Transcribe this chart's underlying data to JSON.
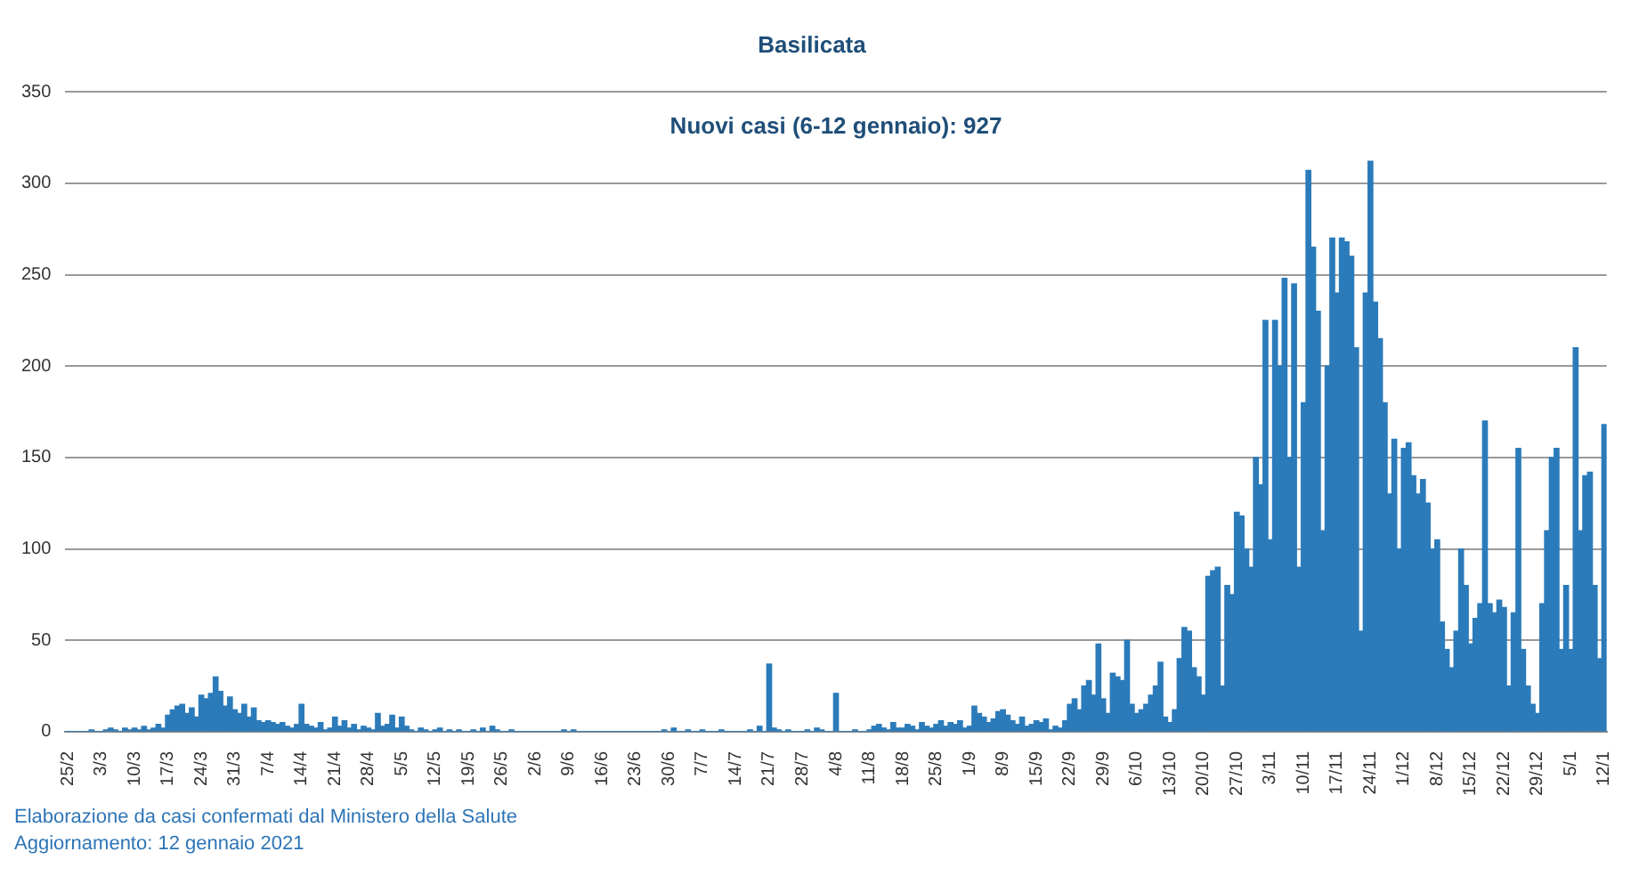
{
  "chart_data": {
    "type": "bar",
    "title": "Basilicata",
    "annotations": [
      "Nuovi casi (6-12 gennaio): 927",
      "Elaborazione da casi confermati dal Ministero della Salute",
      "Aggiornamento: 12 gennaio 2021"
    ],
    "categories": [
      "25/2",
      null,
      null,
      null,
      null,
      null,
      null,
      "3/3",
      null,
      null,
      null,
      null,
      null,
      null,
      "10/3",
      null,
      null,
      null,
      null,
      null,
      null,
      "17/3",
      null,
      null,
      null,
      null,
      null,
      null,
      "24/3",
      null,
      null,
      null,
      null,
      null,
      null,
      "31/3",
      null,
      null,
      null,
      null,
      null,
      null,
      "7/4",
      null,
      null,
      null,
      null,
      null,
      null,
      "14/4",
      null,
      null,
      null,
      null,
      null,
      null,
      "21/4",
      null,
      null,
      null,
      null,
      null,
      null,
      "28/4",
      null,
      null,
      null,
      null,
      null,
      null,
      "5/5",
      null,
      null,
      null,
      null,
      null,
      null,
      "12/5",
      null,
      null,
      null,
      null,
      null,
      null,
      "19/5",
      null,
      null,
      null,
      null,
      null,
      null,
      "26/5",
      null,
      null,
      null,
      null,
      null,
      null,
      "2/6",
      null,
      null,
      null,
      null,
      null,
      null,
      "9/6",
      null,
      null,
      null,
      null,
      null,
      null,
      "16/6",
      null,
      null,
      null,
      null,
      null,
      null,
      "23/6",
      null,
      null,
      null,
      null,
      null,
      null,
      "30/6",
      null,
      null,
      null,
      null,
      null,
      null,
      "7/7",
      null,
      null,
      null,
      null,
      null,
      null,
      "14/7",
      null,
      null,
      null,
      null,
      null,
      null,
      "21/7",
      null,
      null,
      null,
      null,
      null,
      null,
      "28/7",
      null,
      null,
      null,
      null,
      null,
      null,
      "4/8",
      null,
      null,
      null,
      null,
      null,
      null,
      "11/8",
      null,
      null,
      null,
      null,
      null,
      null,
      "18/8",
      null,
      null,
      null,
      null,
      null,
      null,
      "25/8",
      null,
      null,
      null,
      null,
      null,
      null,
      "1/9",
      null,
      null,
      null,
      null,
      null,
      null,
      "8/9",
      null,
      null,
      null,
      null,
      null,
      null,
      "15/9",
      null,
      null,
      null,
      null,
      null,
      null,
      "22/9",
      null,
      null,
      null,
      null,
      null,
      null,
      "29/9",
      null,
      null,
      null,
      null,
      null,
      null,
      "6/10",
      null,
      null,
      null,
      null,
      null,
      null,
      "13/10",
      null,
      null,
      null,
      null,
      null,
      null,
      "20/10",
      null,
      null,
      null,
      null,
      null,
      null,
      "27/10",
      null,
      null,
      null,
      null,
      null,
      null,
      "3/11",
      null,
      null,
      null,
      null,
      null,
      null,
      "10/11",
      null,
      null,
      null,
      null,
      null,
      null,
      "17/11",
      null,
      null,
      null,
      null,
      null,
      null,
      "24/11",
      null,
      null,
      null,
      null,
      null,
      null,
      "1/12",
      null,
      null,
      null,
      null,
      null,
      null,
      "8/12",
      null,
      null,
      null,
      null,
      null,
      null,
      "15/12",
      null,
      null,
      null,
      null,
      null,
      null,
      "22/12",
      null,
      null,
      null,
      null,
      null,
      null,
      "29/12",
      null,
      null,
      null,
      null,
      null,
      null,
      "5/1",
      null,
      null,
      null,
      null,
      null,
      null,
      "12/1"
    ],
    "values": [
      0,
      0,
      0,
      0,
      0,
      1,
      0,
      0,
      1,
      2,
      1,
      0,
      2,
      1,
      2,
      1,
      3,
      1,
      2,
      4,
      2,
      9,
      12,
      14,
      15,
      10,
      13,
      8,
      20,
      18,
      21,
      30,
      22,
      14,
      19,
      12,
      10,
      15,
      8,
      13,
      6,
      5,
      6,
      5,
      4,
      5,
      3,
      2,
      4,
      15,
      4,
      3,
      2,
      5,
      1,
      2,
      8,
      3,
      6,
      2,
      4,
      1,
      3,
      2,
      1,
      10,
      3,
      4,
      9,
      2,
      8,
      3,
      1,
      0,
      2,
      1,
      0,
      1,
      2,
      0,
      1,
      0,
      1,
      0,
      0,
      1,
      0,
      2,
      0,
      3,
      1,
      0,
      0,
      1,
      0,
      0,
      0,
      0,
      0,
      0,
      0,
      0,
      0,
      0,
      1,
      0,
      1,
      0,
      0,
      0,
      0,
      0,
      0,
      0,
      0,
      0,
      0,
      0,
      0,
      0,
      0,
      0,
      0,
      0,
      0,
      1,
      0,
      2,
      0,
      0,
      1,
      0,
      0,
      1,
      0,
      0,
      0,
      1,
      0,
      0,
      0,
      0,
      0,
      1,
      0,
      3,
      0,
      37,
      2,
      1,
      0,
      1,
      0,
      0,
      0,
      1,
      0,
      2,
      1,
      0,
      0,
      21,
      0,
      0,
      0,
      1,
      0,
      0,
      1,
      3,
      4,
      2,
      1,
      5,
      2,
      2,
      4,
      3,
      1,
      5,
      3,
      2,
      4,
      6,
      3,
      5,
      4,
      6,
      2,
      3,
      14,
      10,
      8,
      5,
      7,
      11,
      12,
      9,
      6,
      4,
      8,
      3,
      4,
      6,
      5,
      7,
      1,
      3,
      2,
      6,
      15,
      18,
      12,
      25,
      28,
      20,
      48,
      18,
      10,
      32,
      30,
      28,
      50,
      15,
      10,
      12,
      15,
      20,
      25,
      38,
      8,
      5,
      12,
      40,
      57,
      55,
      35,
      30,
      20,
      85,
      88,
      90,
      25,
      80,
      75,
      120,
      118,
      100,
      90,
      150,
      135,
      225,
      105,
      225,
      200,
      248,
      150,
      245,
      90,
      180,
      307,
      265,
      230,
      110,
      200,
      270,
      240,
      270,
      268,
      260,
      210,
      55,
      240,
      312,
      235,
      215,
      180,
      130,
      160,
      100,
      155,
      158,
      140,
      130,
      138,
      125,
      100,
      105,
      60,
      45,
      35,
      55,
      100,
      80,
      48,
      62,
      70,
      170,
      70,
      65,
      72,
      68,
      25,
      65,
      155,
      45,
      25,
      15,
      10,
      70,
      110,
      150,
      155,
      45,
      80,
      45,
      210,
      110,
      140,
      142,
      80,
      40,
      168
    ],
    "color": "#2b7bba",
    "ylim": [
      0,
      350
    ],
    "yticks": [
      0,
      50,
      100,
      150,
      200,
      250,
      300,
      350
    ],
    "grid": "y",
    "legend": false
  }
}
